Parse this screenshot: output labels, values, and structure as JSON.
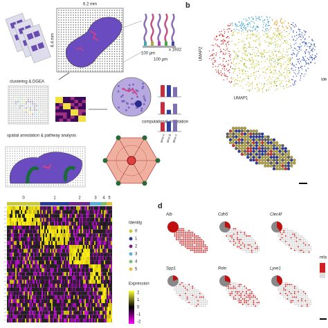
{
  "panel_a": {
    "dimensions": {
      "width": "6.2 mm",
      "height": "6.4 mm"
    },
    "spots": {
      "spacing": "100 μm",
      "diameter": "100 μm",
      "count": "x 1932"
    },
    "steps": {
      "clustering": "clustering & DGEA",
      "spatial": "spatial annotation & pathway analysis",
      "computational": "computational annotation"
    },
    "genes": [
      "gene A",
      "gene B",
      "gene C"
    ]
  },
  "panel_b": {
    "label": "b",
    "y_axis": "UMAP2",
    "x_axis": "UMAP1",
    "legend_title": "Ide"
  },
  "panel_c": {
    "cluster_labels": [
      "0",
      "1",
      "2",
      "3",
      "4",
      "5"
    ],
    "legend_title": "Identity",
    "identities": [
      "0",
      "1",
      "2",
      "3",
      "4",
      "5"
    ],
    "colors": [
      "#c9c93a",
      "#2a3a9a",
      "#6b2a8a",
      "#5ab0d8",
      "#7ac070",
      "#e0c040"
    ],
    "expression_title": "Expression",
    "expression_ticks": [
      "2",
      "1",
      "0",
      "-1",
      "-2"
    ]
  },
  "panel_d": {
    "label": "d",
    "genes": [
      "Alb",
      "Cdh5",
      "Clec4f",
      "Spp1",
      "Reln",
      "Lyve1"
    ],
    "legend_title": "rela"
  }
}
